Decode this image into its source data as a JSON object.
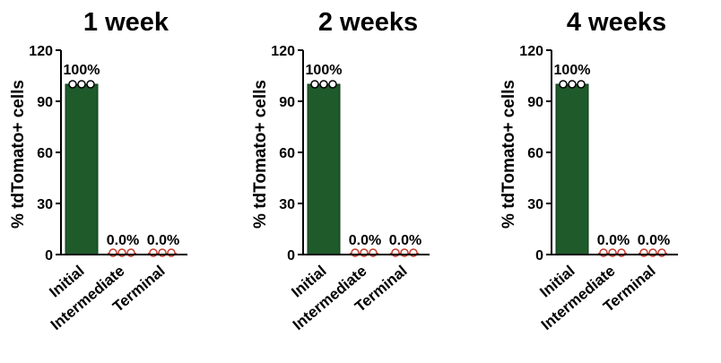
{
  "chart_data": [
    {
      "type": "bar",
      "title": "1 week",
      "ylabel": "% tdTomato+ cells",
      "xlabel": "",
      "ylim": [
        0,
        120
      ],
      "yticks": [
        0,
        30,
        60,
        90,
        120
      ],
      "categories": [
        "Initial",
        "Intermediate",
        "Terminal"
      ],
      "values": [
        100,
        0,
        0
      ],
      "data_labels": [
        "100%",
        "0.0%",
        "0.0%"
      ],
      "points": [
        [
          100,
          100,
          100
        ],
        [
          0,
          0,
          0
        ],
        [
          0,
          0,
          0
        ]
      ],
      "bar_color": "#1e5a2a",
      "zero_point_color": "#c0392b"
    },
    {
      "type": "bar",
      "title": "2 weeks",
      "ylabel": "% tdTomato+ cells",
      "xlabel": "",
      "ylim": [
        0,
        120
      ],
      "yticks": [
        0,
        30,
        60,
        90,
        120
      ],
      "categories": [
        "Initial",
        "Intermediate",
        "Terminal"
      ],
      "values": [
        100,
        0,
        0
      ],
      "data_labels": [
        "100%",
        "0.0%",
        "0.0%"
      ],
      "points": [
        [
          100,
          100,
          100
        ],
        [
          0,
          0,
          0
        ],
        [
          0,
          0,
          0
        ]
      ],
      "bar_color": "#1e5a2a",
      "zero_point_color": "#c0392b"
    },
    {
      "type": "bar",
      "title": "4 weeks",
      "ylabel": "% tdTomato+ cells",
      "xlabel": "",
      "ylim": [
        0,
        120
      ],
      "yticks": [
        0,
        30,
        60,
        90,
        120
      ],
      "categories": [
        "Initial",
        "Intermediate",
        "Terminal"
      ],
      "values": [
        100,
        0,
        0
      ],
      "data_labels": [
        "100%",
        "0.0%",
        "0.0%"
      ],
      "points": [
        [
          100,
          100,
          100
        ],
        [
          0,
          0,
          0
        ],
        [
          0,
          0,
          0
        ]
      ],
      "bar_color": "#1e5a2a",
      "zero_point_color": "#c0392b"
    }
  ]
}
